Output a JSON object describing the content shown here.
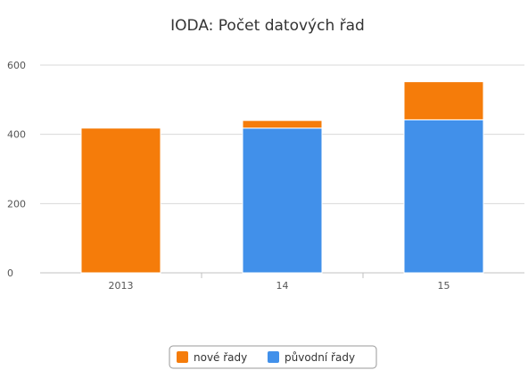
{
  "chart_data": {
    "type": "bar",
    "stacked": true,
    "title": "IODA: Počet datových řad",
    "xlabel": "",
    "ylabel": "",
    "categories": [
      "2013",
      "14",
      "15"
    ],
    "series": [
      {
        "name": "původní řady",
        "values": [
          0,
          418,
          442
        ],
        "color": "#4190EA"
      },
      {
        "name": "nové řady",
        "values": [
          418,
          22,
          110
        ],
        "color": "#F57C0A"
      }
    ],
    "ylim": [
      0,
      600
    ],
    "yticks": [
      0,
      200,
      400,
      600
    ],
    "grid": true,
    "legend": {
      "placement": "bottom-center",
      "entries": [
        {
          "name": "nové řady",
          "color": "#F57C0A",
          "icon": "orange-square-icon"
        },
        {
          "name": "původní řady",
          "color": "#4190EA",
          "icon": "blue-square-icon"
        }
      ]
    }
  }
}
